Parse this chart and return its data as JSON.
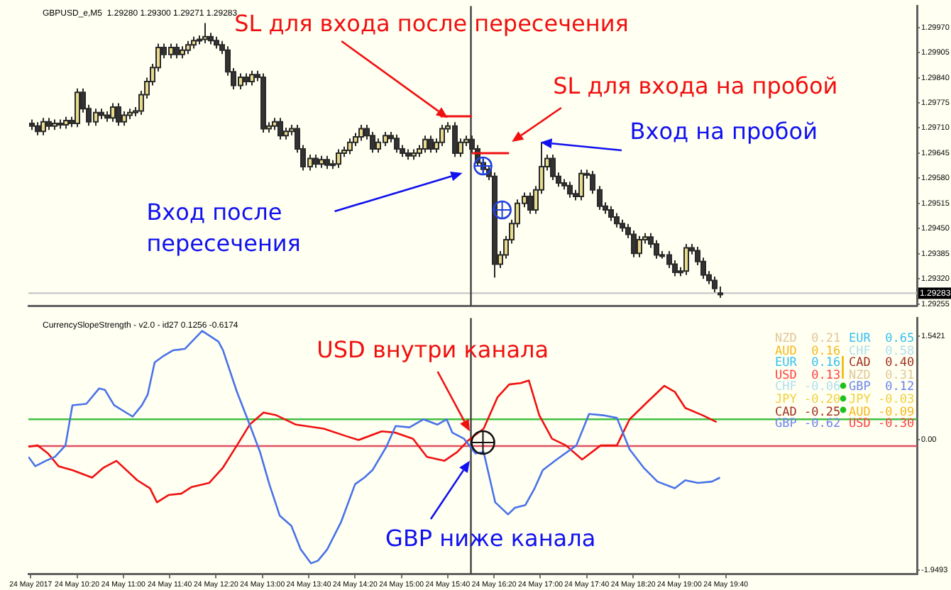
{
  "chart_data": [
    {
      "type": "candlestick",
      "title": "GBPUSD_e,M5  1.29280 1.29300 1.29271 1.29283",
      "x": [
        "2017-05-24T09:40",
        "2017-05-24T09:45",
        "2017-05-24T09:50",
        "2017-05-24T09:55",
        "2017-05-24T10:00",
        "2017-05-24T10:05",
        "2017-05-24T10:10",
        "2017-05-24T10:15",
        "2017-05-24T10:20",
        "2017-05-24T10:25",
        "2017-05-24T10:30",
        "2017-05-24T10:35",
        "2017-05-24T10:40",
        "2017-05-24T10:45",
        "2017-05-24T10:50",
        "2017-05-24T10:55",
        "2017-05-24T11:00",
        "2017-05-24T11:05",
        "2017-05-24T11:10",
        "2017-05-24T11:15",
        "2017-05-24T11:20",
        "2017-05-24T11:25",
        "2017-05-24T11:30",
        "2017-05-24T11:35",
        "2017-05-24T11:40",
        "2017-05-24T11:45",
        "2017-05-24T11:50",
        "2017-05-24T11:55",
        "2017-05-24T12:00",
        "2017-05-24T12:05",
        "2017-05-24T12:10",
        "2017-05-24T12:15",
        "2017-05-24T12:20",
        "2017-05-24T12:25",
        "2017-05-24T12:30",
        "2017-05-24T12:35",
        "2017-05-24T12:40",
        "2017-05-24T12:45",
        "2017-05-24T12:50",
        "2017-05-24T12:55",
        "2017-05-24T13:00",
        "2017-05-24T13:05",
        "2017-05-24T13:10",
        "2017-05-24T13:15",
        "2017-05-24T13:20",
        "2017-05-24T13:25",
        "2017-05-24T13:30",
        "2017-05-24T13:35",
        "2017-05-24T13:40",
        "2017-05-24T13:45",
        "2017-05-24T13:50",
        "2017-05-24T13:55",
        "2017-05-24T14:00",
        "2017-05-24T14:05",
        "2017-05-24T14:10",
        "2017-05-24T14:15",
        "2017-05-24T14:20",
        "2017-05-24T14:25",
        "2017-05-24T14:30",
        "2017-05-24T14:35",
        "2017-05-24T14:40",
        "2017-05-24T14:45",
        "2017-05-24T14:50",
        "2017-05-24T14:55",
        "2017-05-24T15:00",
        "2017-05-24T15:05",
        "2017-05-24T15:10",
        "2017-05-24T15:15",
        "2017-05-24T15:20",
        "2017-05-24T15:25",
        "2017-05-24T15:30",
        "2017-05-24T15:35",
        "2017-05-24T15:40",
        "2017-05-24T15:45",
        "2017-05-24T15:50",
        "2017-05-24T15:55",
        "2017-05-24T16:00",
        "2017-05-24T16:05",
        "2017-05-24T16:10",
        "2017-05-24T16:15",
        "2017-05-24T16:20",
        "2017-05-24T16:25",
        "2017-05-24T16:30",
        "2017-05-24T16:35",
        "2017-05-24T16:40",
        "2017-05-24T16:45",
        "2017-05-24T16:50",
        "2017-05-24T16:55",
        "2017-05-24T17:00",
        "2017-05-24T17:05",
        "2017-05-24T17:10",
        "2017-05-24T17:15",
        "2017-05-24T17:20",
        "2017-05-24T17:25",
        "2017-05-24T17:30",
        "2017-05-24T17:35",
        "2017-05-24T17:40",
        "2017-05-24T17:45",
        "2017-05-24T17:50",
        "2017-05-24T17:55",
        "2017-05-24T18:00",
        "2017-05-24T18:05",
        "2017-05-24T18:10",
        "2017-05-24T18:15",
        "2017-05-24T18:20",
        "2017-05-24T18:25",
        "2017-05-24T18:30",
        "2017-05-24T18:35",
        "2017-05-24T18:40",
        "2017-05-24T18:45",
        "2017-05-24T18:50",
        "2017-05-24T18:55",
        "2017-05-24T19:00",
        "2017-05-24T19:05",
        "2017-05-24T19:10",
        "2017-05-24T19:15",
        "2017-05-24T19:20",
        "2017-05-24T19:25",
        "2017-05-24T19:30",
        "2017-05-24T19:35"
      ],
      "ohlc": [
        [
          1.29722,
          1.29732,
          1.29705,
          1.29715
        ],
        [
          1.29715,
          1.29725,
          1.29691,
          1.29701
        ],
        [
          1.29701,
          1.29736,
          1.29691,
          1.29726
        ],
        [
          1.29726,
          1.29736,
          1.29705,
          1.29715
        ],
        [
          1.29715,
          1.29732,
          1.29705,
          1.29722
        ],
        [
          1.29722,
          1.29732,
          1.29708,
          1.29718
        ],
        [
          1.29718,
          1.29739,
          1.29708,
          1.29729
        ],
        [
          1.29729,
          1.29739,
          1.29712,
          1.29722
        ],
        [
          1.29722,
          1.29812,
          1.29712,
          1.29802
        ],
        [
          1.29802,
          1.29812,
          1.2975,
          1.2976
        ],
        [
          1.2976,
          1.2977,
          1.29716,
          1.29726
        ],
        [
          1.29726,
          1.2976,
          1.29716,
          1.2975
        ],
        [
          1.2975,
          1.2976,
          1.29733,
          1.29743
        ],
        [
          1.29743,
          1.29753,
          1.29726,
          1.29736
        ],
        [
          1.29736,
          1.29774,
          1.29726,
          1.29764
        ],
        [
          1.29764,
          1.29774,
          1.29716,
          1.29726
        ],
        [
          1.29726,
          1.29753,
          1.29716,
          1.29743
        ],
        [
          1.29743,
          1.2976,
          1.29733,
          1.2975
        ],
        [
          1.2975,
          1.29764,
          1.2974,
          1.29754
        ],
        [
          1.29754,
          1.29806,
          1.29744,
          1.29796
        ],
        [
          1.29796,
          1.2984,
          1.29786,
          1.2983
        ],
        [
          1.2983,
          1.29876,
          1.2982,
          1.29866
        ],
        [
          1.29866,
          1.29928,
          1.29856,
          1.29918
        ],
        [
          1.29918,
          1.29928,
          1.2989,
          1.299
        ],
        [
          1.299,
          1.29928,
          1.2989,
          1.29918
        ],
        [
          1.29918,
          1.29928,
          1.2989,
          1.299
        ],
        [
          1.299,
          1.29921,
          1.2989,
          1.29911
        ],
        [
          1.29911,
          1.29935,
          1.29901,
          1.29925
        ],
        [
          1.29925,
          1.29946,
          1.29915,
          1.29936
        ],
        [
          1.29936,
          1.29949,
          1.29926,
          1.29939
        ],
        [
          1.29939,
          1.29981,
          1.29929,
          1.29946
        ],
        [
          1.29946,
          1.29956,
          1.29926,
          1.29936
        ],
        [
          1.29936,
          1.29946,
          1.29915,
          1.29925
        ],
        [
          1.29925,
          1.29935,
          1.29901,
          1.29911
        ],
        [
          1.29911,
          1.29921,
          1.29845,
          1.29855
        ],
        [
          1.29855,
          1.29865,
          1.2981,
          1.2982
        ],
        [
          1.2982,
          1.29851,
          1.2981,
          1.29841
        ],
        [
          1.29841,
          1.29851,
          1.2982,
          1.2983
        ],
        [
          1.2983,
          1.29858,
          1.2982,
          1.29848
        ],
        [
          1.29848,
          1.29858,
          1.29831,
          1.29841
        ],
        [
          1.29841,
          1.29851,
          1.29698,
          1.29708
        ],
        [
          1.29708,
          1.29725,
          1.29698,
          1.29715
        ],
        [
          1.29715,
          1.29736,
          1.29705,
          1.29726
        ],
        [
          1.29726,
          1.29736,
          1.2968,
          1.2969
        ],
        [
          1.2969,
          1.29711,
          1.2968,
          1.29701
        ],
        [
          1.29701,
          1.29718,
          1.29691,
          1.29708
        ],
        [
          1.29708,
          1.29718,
          1.29646,
          1.29656
        ],
        [
          1.29656,
          1.29666,
          1.296,
          1.2961
        ],
        [
          1.2961,
          1.29641,
          1.296,
          1.29631
        ],
        [
          1.29631,
          1.29641,
          1.29607,
          1.29617
        ],
        [
          1.29617,
          1.29638,
          1.29607,
          1.29628
        ],
        [
          1.29628,
          1.29638,
          1.29604,
          1.29614
        ],
        [
          1.29614,
          1.29627,
          1.29604,
          1.29617
        ],
        [
          1.29617,
          1.29655,
          1.29607,
          1.29645
        ],
        [
          1.29645,
          1.29662,
          1.29635,
          1.29652
        ],
        [
          1.29652,
          1.29683,
          1.29642,
          1.29673
        ],
        [
          1.29673,
          1.29697,
          1.29663,
          1.29687
        ],
        [
          1.29687,
          1.29718,
          1.29677,
          1.29708
        ],
        [
          1.29708,
          1.29718,
          1.2968,
          1.2969
        ],
        [
          1.2969,
          1.297,
          1.29646,
          1.29656
        ],
        [
          1.29656,
          1.29683,
          1.29646,
          1.29673
        ],
        [
          1.29673,
          1.297,
          1.29663,
          1.2969
        ],
        [
          1.2969,
          1.297,
          1.29673,
          1.29683
        ],
        [
          1.29683,
          1.29693,
          1.29646,
          1.29656
        ],
        [
          1.29656,
          1.29666,
          1.29635,
          1.29645
        ],
        [
          1.29645,
          1.29655,
          1.29628,
          1.29638
        ],
        [
          1.29638,
          1.29655,
          1.29628,
          1.29645
        ],
        [
          1.29645,
          1.29666,
          1.29635,
          1.29656
        ],
        [
          1.29656,
          1.2969,
          1.29646,
          1.2968
        ],
        [
          1.2968,
          1.2969,
          1.29646,
          1.29656
        ],
        [
          1.29656,
          1.29683,
          1.29646,
          1.29673
        ],
        [
          1.29673,
          1.29718,
          1.29663,
          1.29708
        ],
        [
          1.29708,
          1.29725,
          1.29698,
          1.29715
        ],
        [
          1.29715,
          1.29725,
          1.29635,
          1.29645
        ],
        [
          1.29645,
          1.29683,
          1.29635,
          1.29673
        ],
        [
          1.29673,
          1.2969,
          1.29663,
          1.2968
        ],
        [
          1.2968,
          1.2969,
          1.29646,
          1.29656
        ],
        [
          1.29656,
          1.29666,
          1.2961,
          1.2962
        ],
        [
          1.2962,
          1.2963,
          1.29593,
          1.29603
        ],
        [
          1.29603,
          1.29613,
          1.29575,
          1.29585
        ],
        [
          1.29585,
          1.29595,
          1.29323,
          1.29358
        ],
        [
          1.29358,
          1.29392,
          1.29348,
          1.29382
        ],
        [
          1.29382,
          1.29431,
          1.29372,
          1.29421
        ],
        [
          1.29421,
          1.29473,
          1.29411,
          1.29463
        ],
        [
          1.29463,
          1.29525,
          1.29453,
          1.29515
        ],
        [
          1.29515,
          1.29543,
          1.29505,
          1.29533
        ],
        [
          1.29533,
          1.29543,
          1.29488,
          1.29498
        ],
        [
          1.29498,
          1.2956,
          1.29488,
          1.2955
        ],
        [
          1.2955,
          1.29673,
          1.2954,
          1.2961
        ],
        [
          1.2961,
          1.29641,
          1.296,
          1.29631
        ],
        [
          1.29631,
          1.29641,
          1.29575,
          1.29585
        ],
        [
          1.29585,
          1.29595,
          1.29558,
          1.29568
        ],
        [
          1.29568,
          1.29578,
          1.29551,
          1.29561
        ],
        [
          1.29561,
          1.29571,
          1.2953,
          1.2954
        ],
        [
          1.2954,
          1.2955,
          1.29523,
          1.29533
        ],
        [
          1.29533,
          1.29602,
          1.29523,
          1.29592
        ],
        [
          1.29592,
          1.29602,
          1.29579,
          1.29589
        ],
        [
          1.29589,
          1.29599,
          1.2954,
          1.2955
        ],
        [
          1.2955,
          1.2956,
          1.29498,
          1.29508
        ],
        [
          1.29508,
          1.29518,
          1.29488,
          1.29498
        ],
        [
          1.29498,
          1.29508,
          1.2947,
          1.2948
        ],
        [
          1.2948,
          1.2949,
          1.29453,
          1.29463
        ],
        [
          1.29463,
          1.29473,
          1.29442,
          1.29452
        ],
        [
          1.29452,
          1.29462,
          1.29425,
          1.29435
        ],
        [
          1.29435,
          1.29445,
          1.29376,
          1.29386
        ],
        [
          1.29386,
          1.29431,
          1.29376,
          1.29421
        ],
        [
          1.29421,
          1.29438,
          1.29411,
          1.29428
        ],
        [
          1.29428,
          1.29438,
          1.294,
          1.2941
        ],
        [
          1.2941,
          1.2942,
          1.29372,
          1.29382
        ],
        [
          1.29382,
          1.29392,
          1.29372,
          1.29382
        ],
        [
          1.29382,
          1.29392,
          1.29348,
          1.29358
        ],
        [
          1.29358,
          1.29368,
          1.29327,
          1.29337
        ],
        [
          1.29337,
          1.2935,
          1.29327,
          1.2934
        ],
        [
          1.2934,
          1.2941,
          1.2933,
          1.294
        ],
        [
          1.294,
          1.2941,
          1.29383,
          1.29393
        ],
        [
          1.29393,
          1.29403,
          1.29355,
          1.29365
        ],
        [
          1.29365,
          1.29375,
          1.2932,
          1.2933
        ],
        [
          1.2933,
          1.2934,
          1.29306,
          1.29316
        ],
        [
          1.29316,
          1.29326,
          1.29285,
          1.29295
        ],
        [
          1.2928,
          1.293,
          1.29271,
          1.29283
        ]
      ],
      "xlim": [
        "2017-05-24T09:38",
        "2017-05-24T22:25"
      ],
      "ylim": [
        1.2925,
        1.30025
      ],
      "yticks": [
        {
          "value": 1.2997,
          "label": "1.29970"
        },
        {
          "value": 1.29905,
          "label": "1.29905"
        },
        {
          "value": 1.2984,
          "label": "1.29840"
        },
        {
          "value": 1.29775,
          "label": "1.29775"
        },
        {
          "value": 1.2971,
          "label": "1.29710"
        },
        {
          "value": 1.29645,
          "label": "1.29645"
        },
        {
          "value": 1.2958,
          "label": "1.29580"
        },
        {
          "value": 1.29515,
          "label": "1.29515"
        },
        {
          "value": 1.2945,
          "label": "1.29450"
        },
        {
          "value": 1.29385,
          "label": "1.29385"
        },
        {
          "value": 1.2932,
          "label": "1.29320"
        },
        {
          "value": 1.29255,
          "label": "1.29255"
        }
      ],
      "tick_labels": "y",
      "ref_lines": [
        {
          "axis": "y",
          "value": 1.29283,
          "label": "1.29283",
          "color": "#c8c8c8"
        },
        {
          "axis": "x",
          "value": "2017-05-24T16:00",
          "color": "#404040"
        }
      ],
      "annotations": [
        {
          "text": "SL для входа после пересечения",
          "x": "2017-05-24T15:40",
          "y": 1.29736
        },
        "SL для входа на пробой",
        {
          "text": "Вход на пробой",
          "x": "2017-05-24T17:00",
          "y": 1.29673
        },
        "Вход после пересечения"
      ]
    },
    {
      "type": "line",
      "title": "CurrencySlopeStrength - v2.0 - id27 0.1256 -0.6174",
      "series": [
        {
          "color": "#4a72e8",
          "x": [
            "2017-05-24T09:38",
            "2017-05-24T09:44",
            "2017-05-24T09:53",
            "2017-05-24T10:01",
            "2017-05-24T10:10",
            "2017-05-24T10:16",
            "2017-05-24T10:28",
            "2017-05-24T10:39",
            "2017-05-24T10:44",
            "2017-05-24T10:52",
            "2017-05-24T11:08",
            "2017-05-24T11:16",
            "2017-05-24T11:21",
            "2017-05-24T11:27",
            "2017-05-24T11:35",
            "2017-05-24T11:43",
            "2017-05-24T11:53",
            "2017-05-24T12:08",
            "2017-05-24T12:22",
            "2017-05-24T12:26",
            "2017-05-24T12:38",
            "2017-05-24T12:49",
            "2017-05-24T12:58",
            "2017-05-24T13:06",
            "2017-05-24T13:15",
            "2017-05-24T13:25",
            "2017-05-24T13:33",
            "2017-05-24T13:42",
            "2017-05-24T13:48",
            "2017-05-24T13:56",
            "2017-05-24T14:08",
            "2017-05-24T14:20",
            "2017-05-24T14:28",
            "2017-05-24T14:35",
            "2017-05-24T14:47",
            "2017-05-24T14:55",
            "2017-05-24T15:07",
            "2017-05-24T15:19",
            "2017-05-24T15:31",
            "2017-05-24T15:39",
            "2017-05-24T15:44",
            "2017-05-24T15:54",
            "2017-05-24T16:04",
            "2017-05-24T16:11",
            "2017-05-24T16:21",
            "2017-05-24T16:32",
            "2017-05-24T16:38",
            "2017-05-24T16:47",
            "2017-05-24T16:55",
            "2017-05-24T17:02",
            "2017-05-24T17:14",
            "2017-05-24T17:31",
            "2017-05-24T17:42",
            "2017-05-24T17:54",
            "2017-05-24T18:06",
            "2017-05-24T18:17",
            "2017-05-24T18:29",
            "2017-05-24T18:41",
            "2017-05-24T18:56",
            "2017-05-24T19:05",
            "2017-05-24T19:16",
            "2017-05-24T19:28",
            "2017-05-24T19:35"
          ],
          "values": [
            -0.26,
            -0.4,
            -0.32,
            -0.26,
            -0.09,
            0.51,
            0.53,
            0.76,
            0.74,
            0.51,
            0.34,
            0.51,
            0.67,
            1.15,
            1.25,
            1.33,
            1.35,
            1.62,
            1.46,
            1.33,
            0.71,
            0.22,
            -0.19,
            -0.67,
            -1.14,
            -1.29,
            -1.64,
            -1.85,
            -1.81,
            -1.64,
            -1.23,
            -0.67,
            -0.57,
            -0.46,
            -0.11,
            0.2,
            0.18,
            0.3,
            0.22,
            0.3,
            0.1,
            0.01,
            -0.21,
            -0.19,
            -0.94,
            -1.12,
            -1.02,
            -0.98,
            -0.73,
            -0.46,
            -0.3,
            -0.09,
            0.38,
            0.36,
            0.32,
            -0.15,
            -0.42,
            -0.63,
            -0.73,
            -0.61,
            -0.65,
            -0.63,
            -0.57
          ]
        },
        {
          "color": "#f01010",
          "x": [
            "2017-05-24T09:38",
            "2017-05-24T09:46",
            "2017-05-24T09:55",
            "2017-05-24T10:04",
            "2017-05-24T10:16",
            "2017-05-24T10:33",
            "2017-05-24T10:43",
            "2017-05-24T10:54",
            "2017-05-24T11:12",
            "2017-05-24T11:23",
            "2017-05-24T11:29",
            "2017-05-24T11:39",
            "2017-05-24T11:50",
            "2017-05-24T11:59",
            "2017-05-24T12:14",
            "2017-05-24T12:26",
            "2017-05-24T12:38",
            "2017-05-24T12:49",
            "2017-05-24T13:01",
            "2017-05-24T13:12",
            "2017-05-24T13:29",
            "2017-05-24T13:53",
            "2017-05-24T14:12",
            "2017-05-24T14:23",
            "2017-05-24T14:43",
            "2017-05-24T14:55",
            "2017-05-24T15:10",
            "2017-05-24T15:22",
            "2017-05-24T15:37",
            "2017-05-24T15:48",
            "2017-05-24T15:58",
            "2017-05-24T16:11",
            "2017-05-24T16:23",
            "2017-05-24T16:33",
            "2017-05-24T16:43",
            "2017-05-24T16:50",
            "2017-05-24T16:59",
            "2017-05-24T17:10",
            "2017-05-24T17:22",
            "2017-05-24T17:36",
            "2017-05-24T17:52",
            "2017-05-24T18:06",
            "2017-05-24T18:17",
            "2017-05-24T18:33",
            "2017-05-24T18:47",
            "2017-05-24T18:56",
            "2017-05-24T19:05",
            "2017-05-24T19:20",
            "2017-05-24T19:32"
          ],
          "values": [
            -0.11,
            -0.09,
            -0.21,
            -0.4,
            -0.46,
            -0.57,
            -0.42,
            -0.32,
            -0.61,
            -0.73,
            -0.94,
            -0.83,
            -0.81,
            -0.71,
            -0.65,
            -0.42,
            -0.09,
            0.22,
            0.4,
            0.36,
            0.22,
            0.16,
            0.05,
            -0.01,
            0.12,
            0.1,
            0.01,
            -0.26,
            -0.32,
            -0.19,
            -0.01,
            0.16,
            0.63,
            0.82,
            0.84,
            0.88,
            0.36,
            0.01,
            -0.09,
            -0.3,
            -0.09,
            -0.09,
            0.3,
            0.57,
            0.8,
            0.71,
            0.47,
            0.36,
            0.26
          ]
        }
      ],
      "xlim": [
        "2017-05-24T09:38",
        "2017-05-24T22:25"
      ],
      "xticks": [
        {
          "value": "2017-05-24T09:40",
          "label": "24 May 2017"
        },
        {
          "value": "2017-05-24T10:20",
          "label": "24 May 10:20"
        },
        {
          "value": "2017-05-24T11:00",
          "label": "24 May 11:00"
        },
        {
          "value": "2017-05-24T11:40",
          "label": "24 May 11:40"
        },
        {
          "value": "2017-05-24T12:20",
          "label": "24 May 12:20"
        },
        {
          "value": "2017-05-24T13:00",
          "label": "24 May 13:00"
        },
        {
          "value": "2017-05-24T13:40",
          "label": "24 May 13:40"
        },
        {
          "value": "2017-05-24T14:20",
          "label": "24 May 14:20"
        },
        {
          "value": "2017-05-24T15:00",
          "label": "24 May 15:00"
        },
        {
          "value": "2017-05-24T15:40",
          "label": "24 May 15:40"
        },
        {
          "value": "2017-05-24T16:20",
          "label": "24 May 16:20"
        },
        {
          "value": "2017-05-24T17:00",
          "label": "24 May 17:00"
        },
        {
          "value": "2017-05-24T17:40",
          "label": "24 May 17:40"
        },
        {
          "value": "2017-05-24T18:20",
          "label": "24 May 18:20"
        },
        {
          "value": "2017-05-24T19:00",
          "label": "24 May 19:00"
        },
        {
          "value": "2017-05-24T19:40",
          "label": "24 May 19:40"
        }
      ],
      "ylim": [
        -2.01,
        1.81
      ],
      "yticks": [
        1.5421,
        {
          "value": 0,
          "label": "0.00"
        },
        -1.9493
      ],
      "ref_lines": [
        {
          "axis": "y",
          "value": 0.3,
          "color": "#40c040"
        },
        {
          "axis": "y",
          "value": -0.1,
          "color": "#e05060"
        },
        {
          "axis": "x",
          "value": "2017-05-24T16:00",
          "color": "#404040"
        }
      ],
      "annotations": [
        {
          "text": "USD внутри канала",
          "x": "2017-05-24T15:59",
          "y": 0.12
        },
        {
          "text": "GBP ниже канала",
          "x": "2017-05-24T15:59",
          "y": -0.32
        },
        "NZD  0.21",
        "EUR  0.65",
        "AUD  0.16",
        "CHF  0.58",
        "EUR  0.16",
        "CAD  0.40",
        "USD  0.13",
        "NZD  0.31",
        "CHF -0.06",
        "GBP  0.12",
        "JPY -0.20",
        "JPY -0.03",
        "CAD -0.25",
        "AUD -0.09",
        "GBP -0.62",
        "USD -0.30"
      ]
    }
  ]
}
